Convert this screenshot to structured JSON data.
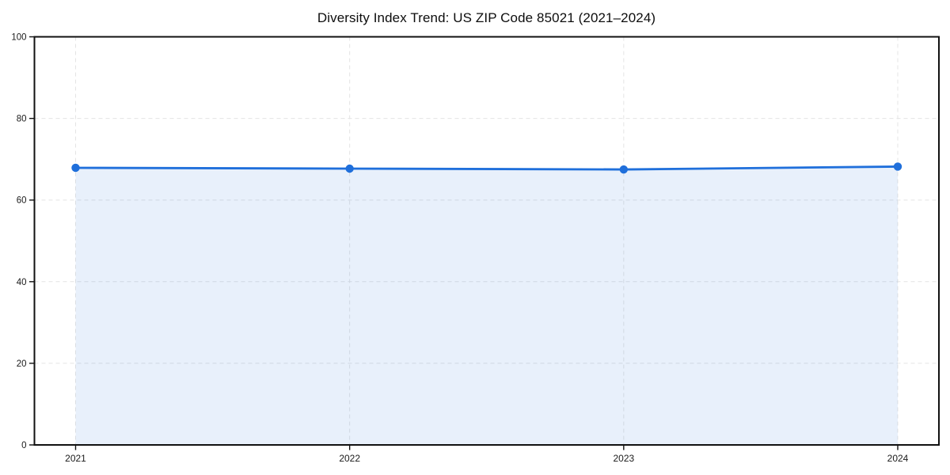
{
  "chart_data": {
    "type": "area",
    "title": "Diversity Index Trend: US ZIP Code 85021 (2021–2024)",
    "x": [
      2021,
      2022,
      2023,
      2024
    ],
    "series": [
      {
        "name": "Diversity Index",
        "values": [
          67.9,
          67.7,
          67.5,
          68.2
        ]
      }
    ],
    "xlabel": "",
    "ylabel": "",
    "ylim": [
      0,
      100
    ],
    "yticks": [
      0,
      20,
      40,
      60,
      80,
      100
    ],
    "xticks": [
      2021,
      2022,
      2023,
      2024
    ],
    "grid": true,
    "grid_style": "dashed",
    "legend": "none",
    "colors": {
      "line": "#1f6fdb",
      "marker": "#1f6fdb",
      "fill": "#1f6fdb",
      "fill_opacity": 0.1,
      "gridline": "#e4e4e4",
      "spine": "#111111",
      "tick_label": "#1a1a1a",
      "background": "#ffffff"
    }
  }
}
